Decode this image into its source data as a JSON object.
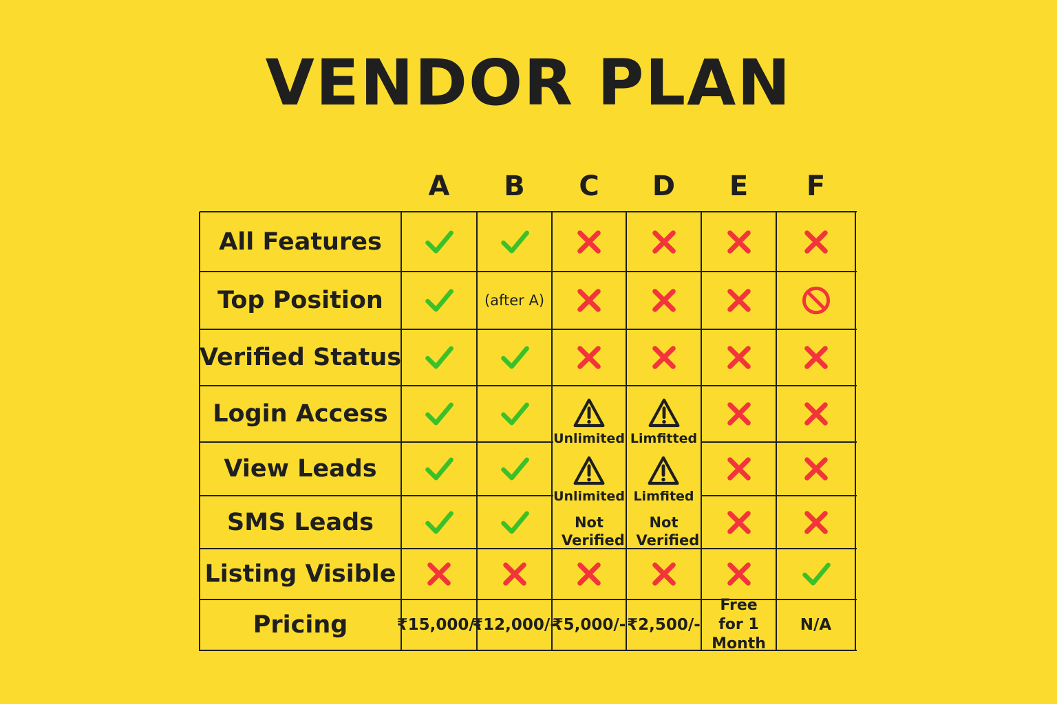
{
  "title": "VENDOR PLAN",
  "plans": [
    "A",
    "B",
    "C",
    "D",
    "E",
    "F"
  ],
  "rows": [
    {
      "label": "All Features"
    },
    {
      "label": "Top Position",
      "b_note": "(after A)"
    },
    {
      "label": "Verified Status"
    },
    {
      "label": "Login Access"
    },
    {
      "label": "View Leads"
    },
    {
      "label": "SMS Leads"
    },
    {
      "label": "Listing Visible"
    },
    {
      "label": "Pricing"
    }
  ],
  "cells": {
    "all_features": [
      "check",
      "check",
      "cross",
      "cross",
      "cross",
      "cross"
    ],
    "top_position": [
      "check",
      "note",
      "cross",
      "cross",
      "cross",
      "prohibited"
    ],
    "verified_status": [
      "check",
      "check",
      "cross",
      "cross",
      "cross",
      "cross"
    ],
    "login_access": [
      "check",
      "check",
      "warning",
      "warning",
      "cross",
      "cross"
    ],
    "view_leads": [
      "check",
      "check",
      "warning",
      "warning",
      "cross",
      "cross"
    ],
    "sms_leads": [
      "check",
      "check",
      "note",
      "note",
      "cross",
      "cross"
    ],
    "listing_visible": [
      "cross",
      "cross",
      "cross",
      "cross",
      "cross",
      "check"
    ]
  },
  "plan_c": {
    "login": "Unlimited",
    "leads": "Unlimited",
    "sms": "Not Verified"
  },
  "plan_d": {
    "login": "Limfitted",
    "leads": "Limfited",
    "sms": "Not Verified"
  },
  "pricing": [
    "₹15,000/-",
    "₹12,000/-",
    "₹5,000/-",
    "₹2,500/-",
    "Free for 1 Month",
    "N/A"
  ],
  "colors": {
    "background": "#fbdc2e",
    "check": "#3cc02a",
    "cross": "#f2353a",
    "text": "#1f1f1f"
  },
  "icons": {
    "check": "check-icon",
    "cross": "cross-icon",
    "warning": "warning-icon",
    "prohibited": "prohibited-icon"
  }
}
